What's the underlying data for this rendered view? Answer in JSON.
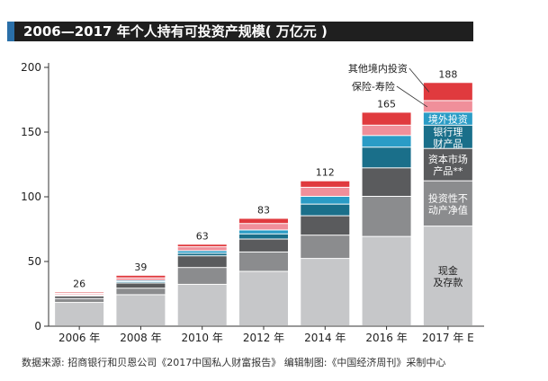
{
  "header": {
    "title": "2006—2017 年个人持有可投资产规模( 万亿元 )"
  },
  "source_note": "数据来源: 招商银行和贝恩公司《2017中国私人财富报告》 编辑制图:《中国经济周刊》采制中心",
  "colors": {
    "title_bar": "#1f1f1f",
    "title_accent": "#2a6fa8",
    "cash": "#c6c7c9",
    "real_estate": "#8b8c8e",
    "capital_market": "#5a5b5d",
    "bank_wealth": "#1a6f8a",
    "overseas": "#2a9cc6",
    "insurance": "#f08f9a",
    "other_overseas": "#e03a3e"
  },
  "chart_data": {
    "type": "bar",
    "stacked": true,
    "title": "2006—2017 年个人持有可投资产规模( 万亿元 )",
    "xlabel": "",
    "ylabel": "",
    "ylim": [
      0,
      200
    ],
    "yticks": [
      0,
      50,
      100,
      150,
      200
    ],
    "grid": false,
    "categories": [
      "2006 年",
      "2008 年",
      "2010 年",
      "2012 年",
      "2014 年",
      "2016 年",
      "2017 年 E"
    ],
    "totals": [
      26,
      39,
      63,
      83,
      112,
      165,
      188
    ],
    "totals_labels": [
      "26",
      "39",
      "63",
      "83",
      "112",
      "165",
      "188"
    ],
    "series": [
      {
        "name": "现金及存款",
        "color": "#c6c7c9",
        "values": [
          18,
          24,
          32,
          42,
          52,
          69,
          77
        ]
      },
      {
        "name": "投资性不动产净值",
        "color": "#8b8c8e",
        "values": [
          3,
          5,
          13,
          15,
          18,
          31,
          35
        ]
      },
      {
        "name": "资本市场产品**",
        "color": "#5a5b5d",
        "values": [
          2,
          4,
          9,
          10,
          15,
          22,
          25
        ]
      },
      {
        "name": "银行理财产品",
        "color": "#1a6f8a",
        "values": [
          0.5,
          1,
          2,
          4,
          9,
          16,
          18
        ]
      },
      {
        "name": "境外投资",
        "color": "#2a9cc6",
        "values": [
          0.5,
          1,
          2,
          3,
          6,
          9,
          10
        ]
      },
      {
        "name": "保险-寿险",
        "color": "#f08f9a",
        "values": [
          1,
          2,
          3,
          5,
          7,
          8,
          9
        ]
      },
      {
        "name": "其他境内投资",
        "color": "#e03a3e",
        "values": [
          1,
          2,
          2,
          4,
          5,
          10,
          14
        ]
      }
    ],
    "annotations": [
      {
        "label": "其他境内投资",
        "series": "其他境内投资",
        "position": "above-left"
      },
      {
        "label": "保险-寿险",
        "series": "保险-寿险",
        "position": "left"
      }
    ],
    "inbar_labels": [
      {
        "series": "境外投资",
        "lines": [
          "境外投资"
        ]
      },
      {
        "series": "银行理财产品",
        "lines": [
          "银行理",
          "财产品"
        ]
      },
      {
        "series": "资本市场产品**",
        "lines": [
          "资本市场",
          "产品**"
        ]
      },
      {
        "series": "投资性不动产净值",
        "lines": [
          "投资性不",
          "动产净值"
        ]
      },
      {
        "series": "现金及存款",
        "lines": [
          "现金",
          "及存款"
        ]
      }
    ]
  }
}
